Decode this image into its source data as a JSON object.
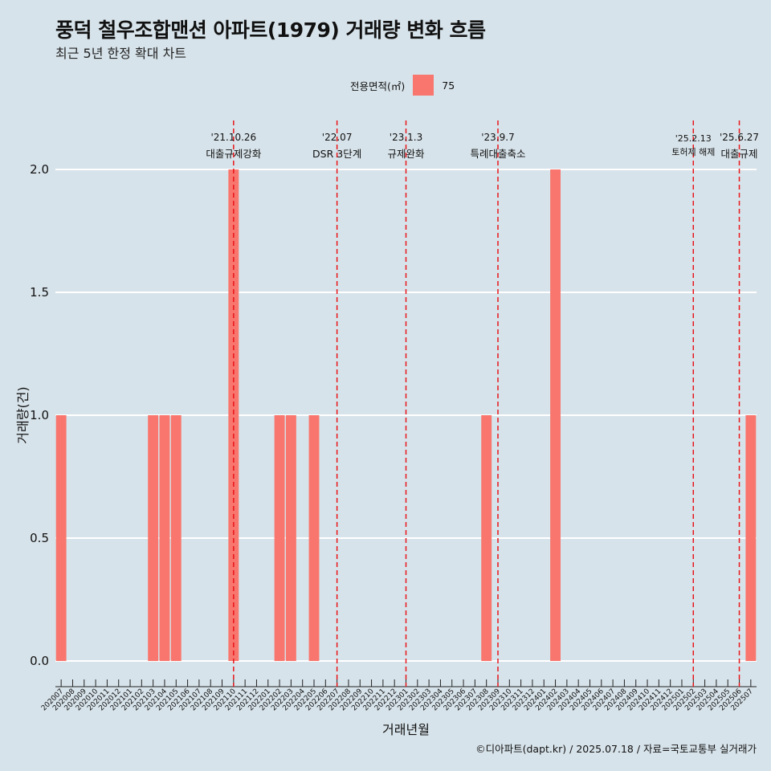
{
  "title": "풍덕 철우조합맨션 아파트(1979) 거래량 변화 흐름",
  "subtitle": "최근 5년 한정 확대 차트",
  "caption": "©디아파트(dapt.kr) / 2025.07.18 / 자료=국토교통부 실거래가",
  "legend": {
    "title": "전용면적(㎡)",
    "entries": [
      {
        "label": "75",
        "color": "#f8766d"
      }
    ]
  },
  "colors": {
    "background": "#d7e3ea",
    "bar": "#f8766d",
    "event_line": "#e8161a",
    "grid": "#ffffff"
  },
  "chart_data": {
    "type": "bar",
    "xlabel": "거래년월",
    "ylabel": "거래량(건)",
    "ylim": [
      0,
      2
    ],
    "yticks": [
      "0.0",
      "0.5",
      "1.0",
      "1.5",
      "2.0"
    ],
    "grid": true,
    "legend_position": "top",
    "categories": [
      "202007",
      "202008",
      "202009",
      "202010",
      "202011",
      "202012",
      "202101",
      "202102",
      "202103",
      "202104",
      "202105",
      "202106",
      "202107",
      "202108",
      "202109",
      "202110",
      "202111",
      "202112",
      "202201",
      "202202",
      "202203",
      "202204",
      "202205",
      "202206",
      "202207",
      "202208",
      "202209",
      "202210",
      "202211",
      "202212",
      "202301",
      "202302",
      "202303",
      "202304",
      "202305",
      "202306",
      "202307",
      "202308",
      "202309",
      "202310",
      "202311",
      "202312",
      "202401",
      "202402",
      "202403",
      "202404",
      "202405",
      "202406",
      "202407",
      "202408",
      "202409",
      "202410",
      "202411",
      "202412",
      "202501",
      "202502",
      "202503",
      "202504",
      "202505",
      "202506",
      "202507"
    ],
    "series": [
      {
        "name": "75",
        "values": [
          1,
          0,
          0,
          0,
          0,
          0,
          0,
          0,
          1,
          1,
          1,
          0,
          0,
          0,
          0,
          2,
          0,
          0,
          0,
          1,
          1,
          0,
          1,
          0,
          0,
          0,
          0,
          0,
          0,
          0,
          0,
          0,
          0,
          0,
          0,
          0,
          0,
          1,
          0,
          0,
          0,
          0,
          0,
          2,
          0,
          0,
          0,
          0,
          0,
          0,
          0,
          0,
          0,
          0,
          0,
          0,
          0,
          0,
          0,
          0,
          1
        ]
      }
    ],
    "annotations": [
      {
        "date": "'21.10.26",
        "label": "대출규제강화",
        "x": "202110"
      },
      {
        "date": "'22.07",
        "label": "DSR 3단계",
        "x": "202207"
      },
      {
        "date": "'23.1.3",
        "label": "규제완화",
        "x": "202301"
      },
      {
        "date": "'23.9.7",
        "label": "특례대출축소",
        "x": "202309"
      },
      {
        "date": "'25.2.13",
        "label": "토허제 해제",
        "x": "202502"
      },
      {
        "date": "'25.6.27",
        "label": "대출규제",
        "x": "202506"
      }
    ]
  }
}
